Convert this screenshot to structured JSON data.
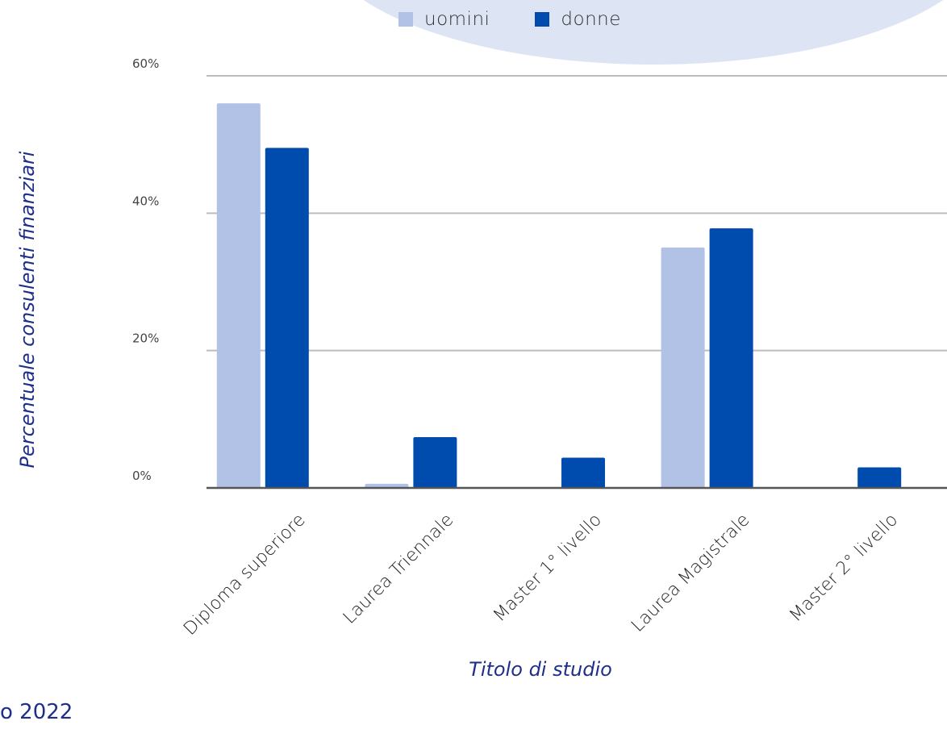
{
  "colors": {
    "uomini": "#b2c1e6",
    "donne": "#004bae",
    "grid": "#bdbdbd",
    "axis": "#555555",
    "title": "#1e2f8a"
  },
  "legend": {
    "uomini": "uomini",
    "donne": "donne"
  },
  "footer_note": "o 2022",
  "chart_data": {
    "type": "bar",
    "xlabel": "Titolo di studio",
    "ylabel": "Percentuale consulenti finanziari",
    "categories": [
      "Diploma superiore",
      "Laurea Triennale",
      "Master 1° livello",
      "Laurea Magistrale",
      "Master 2° livello"
    ],
    "series": [
      {
        "name": "uomini",
        "values": [
          56.0,
          0.6,
          0.0,
          35.0,
          0.0
        ]
      },
      {
        "name": "donne",
        "values": [
          49.5,
          7.4,
          4.4,
          37.8,
          3.0
        ]
      }
    ],
    "ylim": [
      0,
      60
    ],
    "yticks": [
      0,
      20,
      40,
      60
    ],
    "ytick_labels": [
      "0%",
      "20%",
      "40%",
      "60%"
    ],
    "grid": true,
    "legend_position": "top"
  }
}
